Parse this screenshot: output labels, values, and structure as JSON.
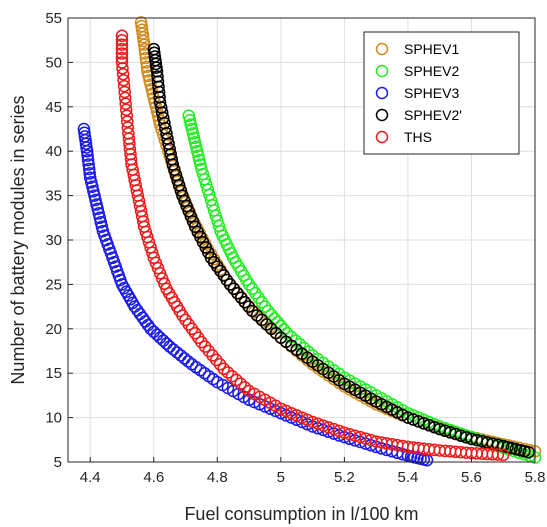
{
  "chart_data": {
    "type": "scatter",
    "title": "",
    "xlabel": "Fuel consumption in l/100 km",
    "ylabel": "Number of battery modules in series",
    "xlim": [
      4.33,
      5.8
    ],
    "ylim": [
      5,
      55
    ],
    "xticks": [
      4.4,
      4.6,
      4.8,
      5,
      5.2,
      5.4,
      5.6,
      5.8
    ],
    "yticks": [
      5,
      10,
      15,
      20,
      25,
      30,
      35,
      40,
      45,
      50,
      55
    ],
    "xtick_labels": [
      "4.4",
      "4.6",
      "4.8",
      "5",
      "5.2",
      "5.4",
      "5.6",
      "5.8"
    ],
    "ytick_labels": [
      "5",
      "10",
      "15",
      "20",
      "25",
      "30",
      "35",
      "40",
      "45",
      "50",
      "55"
    ],
    "grid": true,
    "legend_position": "top-right",
    "marker": "open-circle",
    "series": [
      {
        "name": "SPHEV1",
        "color": "#d08a1c",
        "x": [
          4.56,
          4.57,
          4.58,
          4.6,
          4.62,
          4.65,
          4.68,
          4.72,
          4.77,
          4.83,
          4.9,
          5.0,
          5.1,
          5.2,
          5.3,
          5.4,
          5.5,
          5.6,
          5.7,
          5.8
        ],
        "y": [
          54.5,
          52,
          49,
          46,
          43,
          39.5,
          36,
          32.5,
          29,
          25.5,
          22.5,
          19,
          16,
          13.5,
          11.5,
          10,
          8.8,
          7.8,
          7,
          6.2
        ]
      },
      {
        "name": "SPHEV2",
        "color": "#22ee22",
        "x": [
          4.71,
          4.73,
          4.75,
          4.78,
          4.81,
          4.85,
          4.9,
          4.96,
          5.02,
          5.1,
          5.2,
          5.3,
          5.4,
          5.5,
          5.6,
          5.7,
          5.8
        ],
        "y": [
          44,
          41,
          38,
          34.5,
          31,
          28,
          25,
          22,
          19.5,
          17,
          14.5,
          12.5,
          10.5,
          9,
          7.8,
          6.6,
          5.5
        ]
      },
      {
        "name": "SPHEV3",
        "color": "#1a1aee",
        "x": [
          4.38,
          4.39,
          4.4,
          4.42,
          4.44,
          4.47,
          4.5,
          4.54,
          4.59,
          4.65,
          4.72,
          4.8,
          4.9,
          5.0,
          5.1,
          5.2,
          5.3,
          5.4,
          5.46
        ],
        "y": [
          42.5,
          40,
          37,
          34,
          31,
          28,
          25,
          22.5,
          20,
          18,
          16,
          14,
          12,
          10.5,
          9,
          7.8,
          6.7,
          5.7,
          5.2
        ]
      },
      {
        "name": "SPHEV2'",
        "color": "#000000",
        "x": [
          4.6,
          4.61,
          4.62,
          4.64,
          4.66,
          4.69,
          4.73,
          4.78,
          4.84,
          4.91,
          5.0,
          5.1,
          5.2,
          5.3,
          5.4,
          5.5,
          5.6,
          5.7,
          5.78
        ],
        "y": [
          51.5,
          49,
          45.5,
          42,
          38.5,
          35,
          31.5,
          28,
          25,
          22,
          19,
          16.3,
          13.8,
          11.8,
          10,
          8.7,
          7.6,
          6.8,
          6.1
        ]
      },
      {
        "name": "THS",
        "color": "#ee1a1a",
        "x": [
          4.5,
          4.5,
          4.51,
          4.52,
          4.53,
          4.55,
          4.57,
          4.6,
          4.64,
          4.69,
          4.75,
          4.82,
          4.9,
          5.0,
          5.1,
          5.2,
          5.3,
          5.4,
          5.5,
          5.6,
          5.7
        ],
        "y": [
          53,
          50,
          46,
          42,
          38.5,
          35,
          31.5,
          28,
          24.5,
          21.5,
          18.5,
          15.5,
          13,
          11,
          9.5,
          8.3,
          7.3,
          6.7,
          6.3,
          6.0,
          5.8
        ]
      }
    ]
  }
}
